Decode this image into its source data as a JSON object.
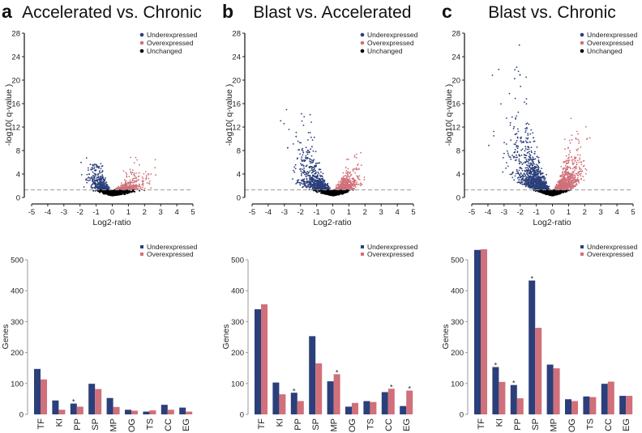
{
  "colors": {
    "under": "#2b3f7a",
    "over": "#d0707a",
    "unchanged": "#000000",
    "threshold": "#999999",
    "axis": "#222222"
  },
  "panels": [
    {
      "letter": "a",
      "title": "Accelerated vs. Chronic"
    },
    {
      "letter": "b",
      "title": "Blast vs. Accelerated"
    },
    {
      "letter": "c",
      "title": "Blast vs. Chronic"
    }
  ],
  "chart_data": [
    {
      "type": "scatter",
      "panel": "a",
      "title": "Accelerated vs. Chronic",
      "xlabel": "Log2-ratio",
      "ylabel": "-log10( q-value )",
      "xlim": [
        -5,
        5
      ],
      "ylim": [
        0,
        28
      ],
      "xticks": [
        "-5",
        "-4",
        "-3",
        "-2",
        "-1",
        "0",
        "1",
        "2",
        "3",
        "4",
        "5"
      ],
      "yticks": [
        "0",
        "4",
        "8",
        "12",
        "16",
        "20",
        "24",
        "28"
      ],
      "threshold_y": 1.3,
      "legend": [
        "Underexpressed",
        "Overexpressed",
        "Unchanged"
      ],
      "legend_position": "top-right",
      "max_y_under": 7,
      "max_y_over": 7,
      "min_x": -2.7,
      "max_x": 3
    },
    {
      "type": "scatter",
      "panel": "b",
      "title": "Blast vs. Accelerated",
      "xlabel": "Log2-ratio",
      "ylabel": "-log10( q-value )",
      "xlim": [
        -5,
        5
      ],
      "ylim": [
        0,
        28
      ],
      "xticks": [
        "-5",
        "-4",
        "-3",
        "-2",
        "-1",
        "0",
        "1",
        "2",
        "3",
        "4",
        "5"
      ],
      "yticks": [
        "0",
        "4",
        "8",
        "12",
        "16",
        "20",
        "24",
        "28"
      ],
      "threshold_y": 1.3,
      "legend": [
        "Underexpressed",
        "Overexpressed",
        "Unchanged"
      ],
      "legend_position": "top-right",
      "max_y_under": 16,
      "max_y_over": 8,
      "min_x": -4,
      "max_x": 2.6
    },
    {
      "type": "scatter",
      "panel": "c",
      "title": "Blast vs. Chronic",
      "xlabel": "Log2-ratio",
      "ylabel": "-log10( q-value )",
      "xlim": [
        -5,
        5
      ],
      "ylim": [
        0,
        28
      ],
      "xticks": [
        "-5",
        "-4",
        "-3",
        "-2",
        "-1",
        "0",
        "1",
        "2",
        "3",
        "4",
        "5"
      ],
      "yticks": [
        "0",
        "4",
        "8",
        "12",
        "16",
        "20",
        "24",
        "28"
      ],
      "threshold_y": 1.3,
      "legend": [
        "Underexpressed",
        "Overexpressed",
        "Unchanged"
      ],
      "legend_position": "top-right",
      "max_y_under": 26,
      "max_y_over": 14,
      "min_x": -4.8,
      "max_x": 2.6
    },
    {
      "type": "bar",
      "panel": "a",
      "ylabel": "Genes",
      "ylim": [
        0,
        500
      ],
      "yticks": [
        "0",
        "100",
        "200",
        "300",
        "400",
        "500"
      ],
      "categories": [
        "TF",
        "KI",
        "PP",
        "SP",
        "MP",
        "OG",
        "TS",
        "CC",
        "EG"
      ],
      "legend_position": "top-right",
      "series": [
        {
          "name": "Underexpressed",
          "values": [
            147,
            45,
            35,
            99,
            53,
            15,
            9,
            31,
            22
          ],
          "significant": [
            false,
            false,
            true,
            false,
            false,
            false,
            false,
            false,
            false
          ]
        },
        {
          "name": "Overexpressed",
          "values": [
            113,
            15,
            25,
            82,
            24,
            12,
            13,
            15,
            9
          ],
          "significant": [
            false,
            false,
            false,
            false,
            false,
            false,
            false,
            false,
            false
          ]
        }
      ]
    },
    {
      "type": "bar",
      "panel": "b",
      "ylabel": "Genes",
      "ylim": [
        0,
        500
      ],
      "yticks": [
        "0",
        "100",
        "200",
        "300",
        "400",
        "500"
      ],
      "categories": [
        "TF",
        "KI",
        "PP",
        "SP",
        "MP",
        "OG",
        "TS",
        "CC",
        "EG"
      ],
      "legend_position": "top-right",
      "series": [
        {
          "name": "Underexpressed",
          "values": [
            340,
            103,
            70,
            253,
            107,
            25,
            43,
            72,
            27
          ],
          "significant": [
            false,
            false,
            true,
            false,
            false,
            false,
            false,
            false,
            false
          ]
        },
        {
          "name": "Overexpressed",
          "values": [
            356,
            65,
            43,
            165,
            130,
            37,
            40,
            83,
            77
          ],
          "significant": [
            false,
            false,
            false,
            false,
            true,
            false,
            false,
            true,
            true
          ]
        }
      ]
    },
    {
      "type": "bar",
      "panel": "c",
      "ylabel": "Genes",
      "ylim": [
        0,
        500
      ],
      "yticks": [
        "0",
        "100",
        "200",
        "300",
        "400",
        "500"
      ],
      "categories": [
        "TF",
        "KI",
        "PP",
        "SP",
        "MP",
        "OG",
        "TS",
        "CC",
        "EG"
      ],
      "legend_position": "top-right",
      "series": [
        {
          "name": "Underexpressed",
          "values": [
            532,
            153,
            95,
            433,
            161,
            49,
            58,
            99,
            60
          ],
          "significant": [
            false,
            true,
            true,
            true,
            false,
            false,
            false,
            false,
            false
          ]
        },
        {
          "name": "Overexpressed",
          "values": [
            534,
            105,
            52,
            280,
            149,
            43,
            56,
            106,
            60
          ],
          "significant": [
            false,
            false,
            false,
            false,
            false,
            false,
            false,
            false,
            false
          ]
        }
      ]
    }
  ]
}
